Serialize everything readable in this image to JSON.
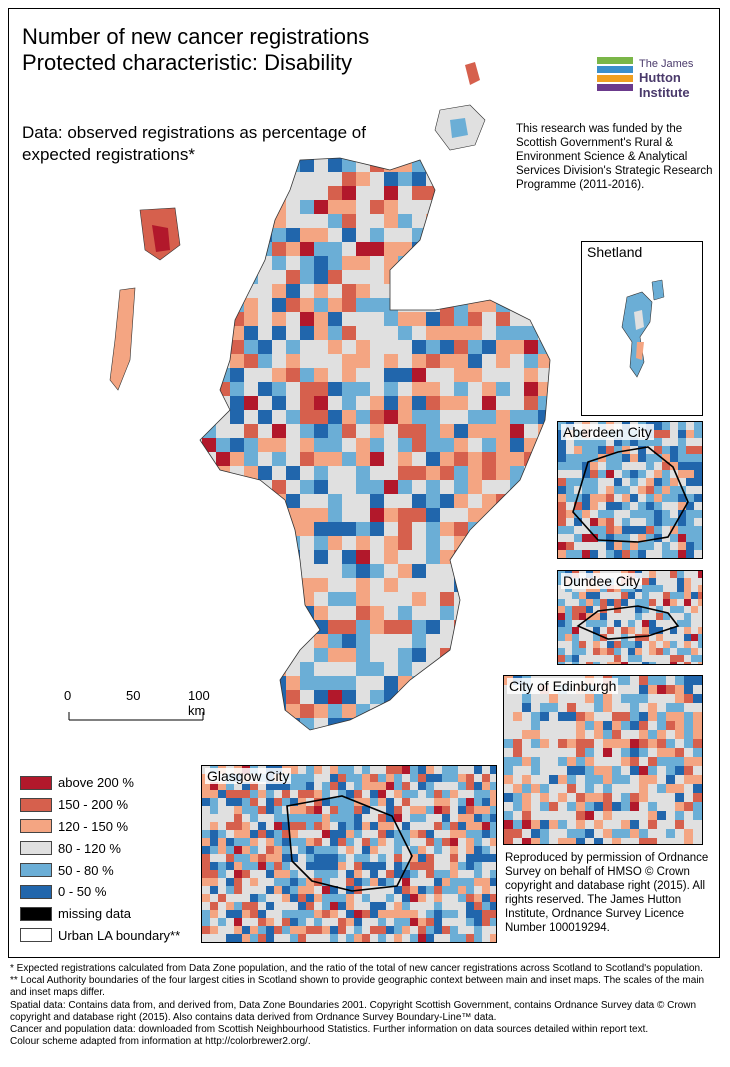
{
  "title_line1": "Number of new cancer registrations",
  "title_line2": "Protected characteristic: Disability",
  "subtitle": "Data: observed registrations as percentage of expected registrations*",
  "funding": "This research was funded by the Scottish Government's Rural & Environment Science & Analytical Services Division's Strategic Research Programme (2011-2016).",
  "logo": {
    "line1": "The James",
    "line2": "Hutton",
    "line3": "Institute"
  },
  "insets": {
    "shetland": "Shetland",
    "aberdeen": "Aberdeen City",
    "dundee": "Dundee City",
    "edinburgh": "City of Edinburgh",
    "glasgow": "Glasgow City"
  },
  "scale": {
    "tick0": "0",
    "tick1": "50",
    "tick2": "100 km"
  },
  "legend": [
    {
      "label": "above 200 %",
      "color": "#b2182b"
    },
    {
      "label": "150 - 200 %",
      "color": "#d6604d"
    },
    {
      "label": "120 - 150 %",
      "color": "#f4a582"
    },
    {
      "label": "80 - 120 %",
      "color": "#e0e0e0"
    },
    {
      "label": "50 - 80 %",
      "color": "#6baed6"
    },
    {
      "label": "0 - 50 %",
      "color": "#2166ac"
    },
    {
      "label": "missing data",
      "color": "#000000"
    },
    {
      "label": "Urban LA boundary**",
      "color": "#ffffff"
    }
  ],
  "reproduced": "Reproduced by permission of Ordnance Survey on behalf of HMSO © Crown copyright and database right (2015). All rights reserved. The James Hutton Institute, Ordnance Survey Licence Number 100019294.",
  "footnotes": [
    "* Expected registrations calculated from Data Zone population, and the ratio of the total of new cancer registrations across Scotland to Scotland's population.",
    "** Local Authority boundaries of the four largest cities in Scotland shown to provide geographic context between main and inset maps. The scales of the main and inset maps differ.",
    "Spatial data: Contains data from, and derived from, Data Zone Boundaries 2001. Copyright Scottish Government, contains Ordnance Survey data © Crown copyright and database right (2015). Also contains data derived from Ordnance Survey Boundary-Line™ data.",
    "Cancer and population data: downloaded from Scottish Neighbourhood Statistics. Further information on data sources detailed within report text.",
    "Colour scheme adapted from information at http://colorbrewer2.org/."
  ]
}
